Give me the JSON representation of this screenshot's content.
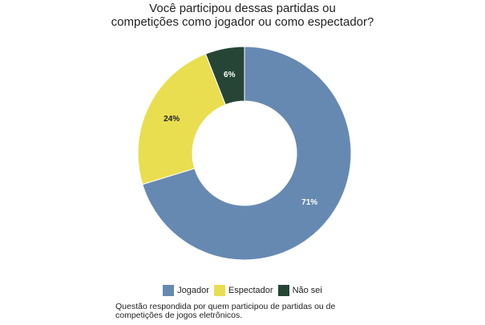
{
  "chart_data": {
    "type": "pie",
    "title_lines": [
      "Você participou dessas partidas ou",
      "competições como jogador ou como espectador?"
    ],
    "categories": [
      "Jogador",
      "Espectador",
      "Não sei"
    ],
    "values": [
      71,
      24,
      6
    ],
    "labels": [
      "71%",
      "24%",
      "6%"
    ],
    "colors": [
      "#6689b2",
      "#e9de50",
      "#264536"
    ],
    "label_colors": [
      "#ffffff",
      "#222222",
      "#ffffff"
    ],
    "donut": true,
    "legend_placement": "bottom",
    "caption_lines": [
      "Questão respondida por quem participou de partidas ou de",
      "competições de jogos eletrônicos."
    ]
  }
}
